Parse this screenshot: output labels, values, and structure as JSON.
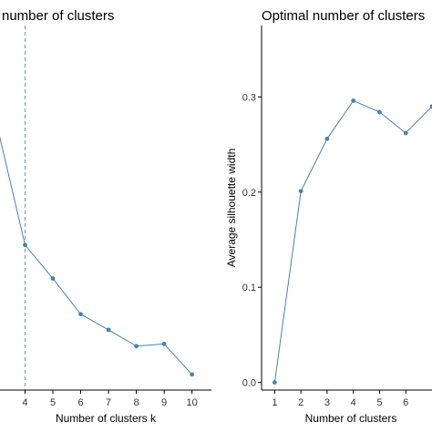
{
  "chart_data": [
    {
      "type": "line",
      "title": "number of clusters",
      "xlabel": "Number of clusters k",
      "ylabel": "",
      "x_ticks": [
        4,
        5,
        6,
        7,
        8,
        9,
        10
      ],
      "x": [
        3,
        4,
        5,
        6,
        7,
        8,
        9,
        10
      ],
      "values": [
        6.15,
        4.55,
        4.1,
        3.62,
        3.41,
        3.19,
        3.22,
        2.81
      ],
      "xlim": [
        3.1,
        10.7
      ],
      "ylim": [
        2.6,
        7.5
      ],
      "optimal_k": 4,
      "grid": false,
      "color": "#4682b4"
    },
    {
      "type": "line",
      "title": "Optimal number of clusters",
      "xlabel": "Number of clusters",
      "ylabel": "Average silhouette width",
      "x_ticks": [
        1,
        2,
        3,
        4,
        5,
        6
      ],
      "y_ticks": [
        "0.0",
        "0.1",
        "0.2",
        "0.3"
      ],
      "x": [
        1,
        2,
        3,
        4,
        5,
        6,
        7
      ],
      "values": [
        0.0,
        0.201,
        0.256,
        0.296,
        0.284,
        0.262,
        0.29
      ],
      "xlim": [
        0.5,
        7.0
      ],
      "ylim": [
        -0.008,
        0.375
      ],
      "grid": false,
      "color": "#4682b4"
    }
  ]
}
